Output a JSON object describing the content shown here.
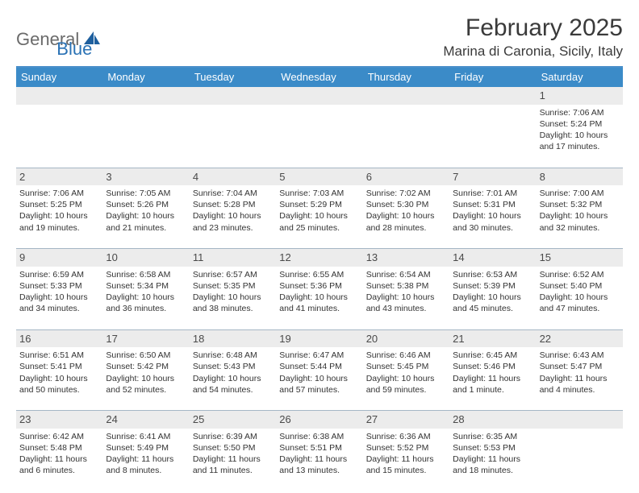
{
  "logo": {
    "part1": "General",
    "part2": "Blue"
  },
  "title": "February 2025",
  "location": "Marina di Caronia, Sicily, Italy",
  "colors": {
    "header_bg": "#3b8bc8",
    "header_text": "#ffffff",
    "divider": "#4a8fca",
    "daynum_bg": "#ececec",
    "row_sep": "#5b7a96",
    "text": "#333333",
    "logo_gray": "#6b6b6b",
    "logo_blue": "#2a72b5",
    "logo_icon": "#1e5f9e"
  },
  "fonts": {
    "title_pt": 30,
    "location_pt": 17,
    "header_pt": 13,
    "daynum_pt": 13,
    "body_pt": 10.5,
    "logo_pt": 22
  },
  "weekdays": [
    "Sunday",
    "Monday",
    "Tuesday",
    "Wednesday",
    "Thursday",
    "Friday",
    "Saturday"
  ],
  "weeks": [
    [
      null,
      null,
      null,
      null,
      null,
      null,
      {
        "d": "1",
        "sunrise": "Sunrise: 7:06 AM",
        "sunset": "Sunset: 5:24 PM",
        "day1": "Daylight: 10 hours",
        "day2": "and 17 minutes."
      }
    ],
    [
      {
        "d": "2",
        "sunrise": "Sunrise: 7:06 AM",
        "sunset": "Sunset: 5:25 PM",
        "day1": "Daylight: 10 hours",
        "day2": "and 19 minutes."
      },
      {
        "d": "3",
        "sunrise": "Sunrise: 7:05 AM",
        "sunset": "Sunset: 5:26 PM",
        "day1": "Daylight: 10 hours",
        "day2": "and 21 minutes."
      },
      {
        "d": "4",
        "sunrise": "Sunrise: 7:04 AM",
        "sunset": "Sunset: 5:28 PM",
        "day1": "Daylight: 10 hours",
        "day2": "and 23 minutes."
      },
      {
        "d": "5",
        "sunrise": "Sunrise: 7:03 AM",
        "sunset": "Sunset: 5:29 PM",
        "day1": "Daylight: 10 hours",
        "day2": "and 25 minutes."
      },
      {
        "d": "6",
        "sunrise": "Sunrise: 7:02 AM",
        "sunset": "Sunset: 5:30 PM",
        "day1": "Daylight: 10 hours",
        "day2": "and 28 minutes."
      },
      {
        "d": "7",
        "sunrise": "Sunrise: 7:01 AM",
        "sunset": "Sunset: 5:31 PM",
        "day1": "Daylight: 10 hours",
        "day2": "and 30 minutes."
      },
      {
        "d": "8",
        "sunrise": "Sunrise: 7:00 AM",
        "sunset": "Sunset: 5:32 PM",
        "day1": "Daylight: 10 hours",
        "day2": "and 32 minutes."
      }
    ],
    [
      {
        "d": "9",
        "sunrise": "Sunrise: 6:59 AM",
        "sunset": "Sunset: 5:33 PM",
        "day1": "Daylight: 10 hours",
        "day2": "and 34 minutes."
      },
      {
        "d": "10",
        "sunrise": "Sunrise: 6:58 AM",
        "sunset": "Sunset: 5:34 PM",
        "day1": "Daylight: 10 hours",
        "day2": "and 36 minutes."
      },
      {
        "d": "11",
        "sunrise": "Sunrise: 6:57 AM",
        "sunset": "Sunset: 5:35 PM",
        "day1": "Daylight: 10 hours",
        "day2": "and 38 minutes."
      },
      {
        "d": "12",
        "sunrise": "Sunrise: 6:55 AM",
        "sunset": "Sunset: 5:36 PM",
        "day1": "Daylight: 10 hours",
        "day2": "and 41 minutes."
      },
      {
        "d": "13",
        "sunrise": "Sunrise: 6:54 AM",
        "sunset": "Sunset: 5:38 PM",
        "day1": "Daylight: 10 hours",
        "day2": "and 43 minutes."
      },
      {
        "d": "14",
        "sunrise": "Sunrise: 6:53 AM",
        "sunset": "Sunset: 5:39 PM",
        "day1": "Daylight: 10 hours",
        "day2": "and 45 minutes."
      },
      {
        "d": "15",
        "sunrise": "Sunrise: 6:52 AM",
        "sunset": "Sunset: 5:40 PM",
        "day1": "Daylight: 10 hours",
        "day2": "and 47 minutes."
      }
    ],
    [
      {
        "d": "16",
        "sunrise": "Sunrise: 6:51 AM",
        "sunset": "Sunset: 5:41 PM",
        "day1": "Daylight: 10 hours",
        "day2": "and 50 minutes."
      },
      {
        "d": "17",
        "sunrise": "Sunrise: 6:50 AM",
        "sunset": "Sunset: 5:42 PM",
        "day1": "Daylight: 10 hours",
        "day2": "and 52 minutes."
      },
      {
        "d": "18",
        "sunrise": "Sunrise: 6:48 AM",
        "sunset": "Sunset: 5:43 PM",
        "day1": "Daylight: 10 hours",
        "day2": "and 54 minutes."
      },
      {
        "d": "19",
        "sunrise": "Sunrise: 6:47 AM",
        "sunset": "Sunset: 5:44 PM",
        "day1": "Daylight: 10 hours",
        "day2": "and 57 minutes."
      },
      {
        "d": "20",
        "sunrise": "Sunrise: 6:46 AM",
        "sunset": "Sunset: 5:45 PM",
        "day1": "Daylight: 10 hours",
        "day2": "and 59 minutes."
      },
      {
        "d": "21",
        "sunrise": "Sunrise: 6:45 AM",
        "sunset": "Sunset: 5:46 PM",
        "day1": "Daylight: 11 hours",
        "day2": "and 1 minute."
      },
      {
        "d": "22",
        "sunrise": "Sunrise: 6:43 AM",
        "sunset": "Sunset: 5:47 PM",
        "day1": "Daylight: 11 hours",
        "day2": "and 4 minutes."
      }
    ],
    [
      {
        "d": "23",
        "sunrise": "Sunrise: 6:42 AM",
        "sunset": "Sunset: 5:48 PM",
        "day1": "Daylight: 11 hours",
        "day2": "and 6 minutes."
      },
      {
        "d": "24",
        "sunrise": "Sunrise: 6:41 AM",
        "sunset": "Sunset: 5:49 PM",
        "day1": "Daylight: 11 hours",
        "day2": "and 8 minutes."
      },
      {
        "d": "25",
        "sunrise": "Sunrise: 6:39 AM",
        "sunset": "Sunset: 5:50 PM",
        "day1": "Daylight: 11 hours",
        "day2": "and 11 minutes."
      },
      {
        "d": "26",
        "sunrise": "Sunrise: 6:38 AM",
        "sunset": "Sunset: 5:51 PM",
        "day1": "Daylight: 11 hours",
        "day2": "and 13 minutes."
      },
      {
        "d": "27",
        "sunrise": "Sunrise: 6:36 AM",
        "sunset": "Sunset: 5:52 PM",
        "day1": "Daylight: 11 hours",
        "day2": "and 15 minutes."
      },
      {
        "d": "28",
        "sunrise": "Sunrise: 6:35 AM",
        "sunset": "Sunset: 5:53 PM",
        "day1": "Daylight: 11 hours",
        "day2": "and 18 minutes."
      },
      null
    ]
  ]
}
